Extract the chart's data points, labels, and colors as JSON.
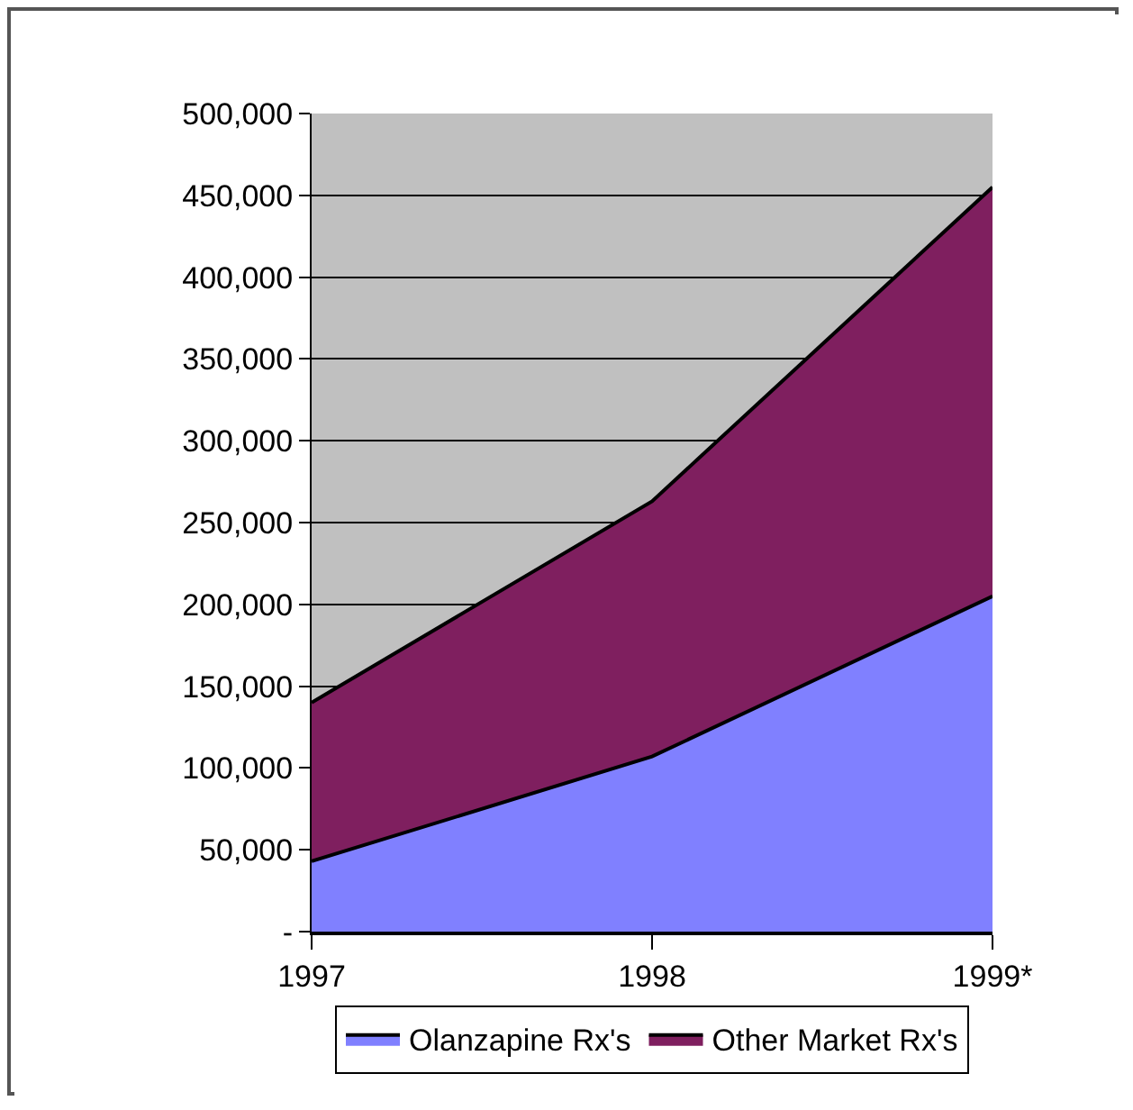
{
  "chart_data": {
    "type": "area",
    "stacked": true,
    "categories": [
      "1997",
      "1998",
      "1999*"
    ],
    "series": [
      {
        "name": "Olanzapine Rx's",
        "color": "#8080ff",
        "values": [
          43000,
          107000,
          205000
        ]
      },
      {
        "name": "Other Market Rx's",
        "color": "#7f1f5f",
        "values": [
          97000,
          156000,
          250000
        ]
      }
    ],
    "ylim": [
      0,
      500000
    ],
    "yticks": [
      {
        "value": 0,
        "label": "-"
      },
      {
        "value": 50000,
        "label": "50,000"
      },
      {
        "value": 100000,
        "label": "100,000"
      },
      {
        "value": 150000,
        "label": "150,000"
      },
      {
        "value": 200000,
        "label": "200,000"
      },
      {
        "value": 250000,
        "label": "250,000"
      },
      {
        "value": 300000,
        "label": "300,000"
      },
      {
        "value": 350000,
        "label": "350,000"
      },
      {
        "value": 400000,
        "label": "400,000"
      },
      {
        "value": 450000,
        "label": "450,000"
      },
      {
        "value": 500000,
        "label": "500,000"
      }
    ],
    "grid": "y",
    "legend": "bottom"
  }
}
